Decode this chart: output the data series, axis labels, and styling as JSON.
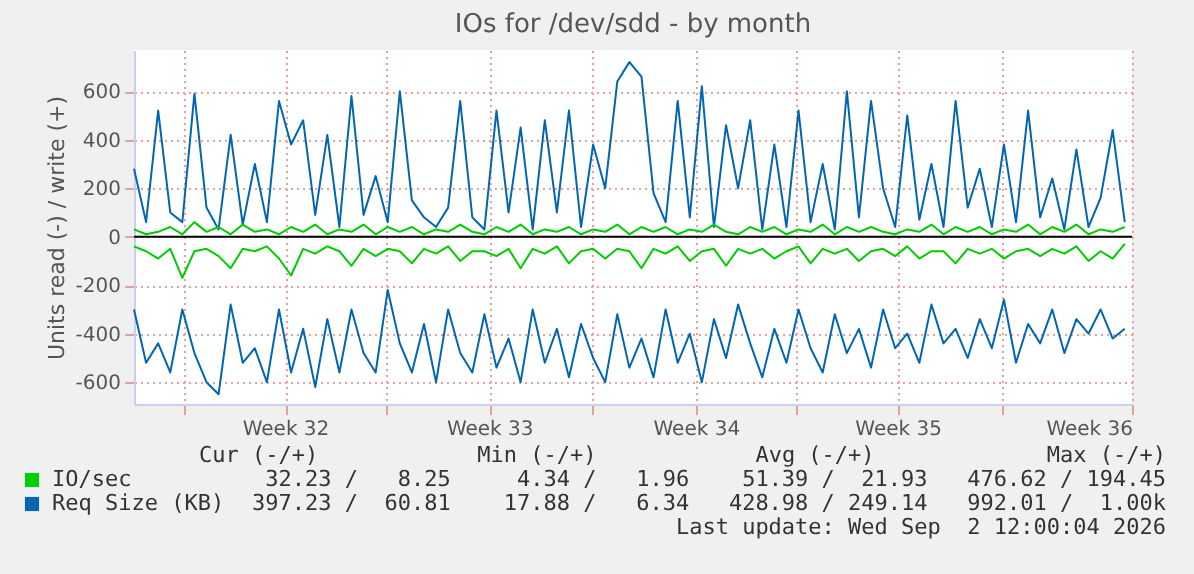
{
  "chart_data": {
    "type": "line",
    "title": "IOs for /dev/sdd - by month",
    "ylabel": "Units read (-) / write (+)",
    "x": [
      "2026-07-30T02:00",
      "2026-07-30T12:00",
      "2026-07-30T22:00",
      "2026-07-31T08:00",
      "2026-07-31T18:00",
      "2026-08-01T04:00",
      "2026-08-01T14:00",
      "2026-08-02T00:00",
      "2026-08-02T10:00",
      "2026-08-02T20:00",
      "2026-08-03T06:00",
      "2026-08-03T16:00",
      "2026-08-04T02:00",
      "2026-08-04T12:00",
      "2026-08-04T22:00",
      "2026-08-05T08:00",
      "2026-08-05T18:00",
      "2026-08-06T04:00",
      "2026-08-06T14:00",
      "2026-08-07T00:00",
      "2026-08-07T10:00",
      "2026-08-07T20:00",
      "2026-08-08T06:00",
      "2026-08-08T16:00",
      "2026-08-09T02:00",
      "2026-08-09T12:00",
      "2026-08-09T22:00",
      "2026-08-10T08:00",
      "2026-08-10T18:00",
      "2026-08-11T04:00",
      "2026-08-11T14:00",
      "2026-08-12T00:00",
      "2026-08-12T10:00",
      "2026-08-12T20:00",
      "2026-08-13T06:00",
      "2026-08-13T16:00",
      "2026-08-14T02:00",
      "2026-08-14T12:00",
      "2026-08-14T22:00",
      "2026-08-15T08:00",
      "2026-08-15T18:00",
      "2026-08-16T04:00",
      "2026-08-16T14:00",
      "2026-08-17T00:00",
      "2026-08-17T10:00",
      "2026-08-17T20:00",
      "2026-08-18T06:00",
      "2026-08-18T16:00",
      "2026-08-19T02:00",
      "2026-08-19T12:00",
      "2026-08-19T22:00",
      "2026-08-20T08:00",
      "2026-08-20T18:00",
      "2026-08-21T04:00",
      "2026-08-21T14:00",
      "2026-08-22T00:00",
      "2026-08-22T10:00",
      "2026-08-22T20:00",
      "2026-08-23T06:00",
      "2026-08-23T16:00",
      "2026-08-24T02:00",
      "2026-08-24T12:00",
      "2026-08-24T22:00",
      "2026-08-25T08:00",
      "2026-08-25T18:00",
      "2026-08-26T04:00",
      "2026-08-26T14:00",
      "2026-08-27T00:00",
      "2026-08-27T10:00",
      "2026-08-27T20:00",
      "2026-08-28T06:00",
      "2026-08-28T16:00",
      "2026-08-29T02:00",
      "2026-08-29T12:00",
      "2026-08-29T22:00",
      "2026-08-30T08:00",
      "2026-08-30T18:00",
      "2026-08-31T04:00",
      "2026-08-31T14:00",
      "2026-09-01T00:00",
      "2026-09-01T10:00",
      "2026-09-01T20:00",
      "2026-09-02T06:00"
    ],
    "series": [
      {
        "color": "#0066b3",
        "values": [
          -300,
          -520,
          -440,
          -560,
          -300,
          -480,
          -600,
          -650,
          -280,
          -520,
          -460,
          -600,
          -300,
          -560,
          -380,
          -620,
          -340,
          -560,
          -300,
          -480,
          -560,
          -220,
          -440,
          -560,
          -360,
          -600,
          -300,
          -480,
          -560,
          -320,
          -540,
          -420,
          -600,
          -300,
          -520,
          -380,
          -580,
          -360,
          -500,
          -600,
          -320,
          -540,
          -420,
          -580,
          -300,
          -520,
          -400,
          -600,
          -340,
          -500,
          -280,
          -440,
          -580,
          -380,
          -520,
          -300,
          -460,
          -560,
          -320,
          -480,
          -380,
          -540,
          -300,
          -460,
          -400,
          -520,
          -280,
          -440,
          -380,
          -500,
          -340,
          -460,
          -260,
          -520,
          -360,
          -440,
          -300,
          -480,
          -340,
          -400,
          -300,
          -420,
          -380
        ]
      },
      {
        "name": "Req Size (KB)",
        "color": "#0066b3",
        "values": [
          280,
          60,
          520,
          100,
          60,
          590,
          120,
          30,
          420,
          50,
          300,
          60,
          560,
          380,
          480,
          90,
          420,
          40,
          580,
          90,
          250,
          60,
          600,
          150,
          80,
          40,
          120,
          560,
          80,
          30,
          520,
          100,
          450,
          30,
          480,
          100,
          520,
          40,
          380,
          200,
          640,
          720,
          660,
          180,
          60,
          560,
          80,
          620,
          40,
          460,
          200,
          480,
          30,
          380,
          40,
          520,
          60,
          300,
          30,
          600,
          80,
          560,
          200,
          40,
          500,
          70,
          300,
          40,
          560,
          120,
          280,
          40,
          380,
          60,
          520,
          80,
          240,
          30,
          360,
          40,
          160,
          440,
          60
        ]
      },
      {
        "color": "#00cc00",
        "values": [
          -40,
          -60,
          -90,
          -50,
          -170,
          -60,
          -50,
          -80,
          -130,
          -50,
          -60,
          -40,
          -90,
          -160,
          -50,
          -70,
          -40,
          -60,
          -120,
          -50,
          -80,
          -50,
          -60,
          -110,
          -50,
          -70,
          -40,
          -100,
          -60,
          -60,
          -80,
          -50,
          -130,
          -50,
          -70,
          -40,
          -110,
          -60,
          -50,
          -90,
          -50,
          -60,
          -130,
          -50,
          -70,
          -40,
          -100,
          -60,
          -50,
          -120,
          -50,
          -70,
          -50,
          -90,
          -60,
          -40,
          -110,
          -50,
          -70,
          -50,
          -100,
          -60,
          -50,
          -80,
          -40,
          -90,
          -60,
          -60,
          -110,
          -50,
          -70,
          -50,
          -90,
          -60,
          -50,
          -80,
          -50,
          -70,
          -40,
          -100,
          -60,
          -90,
          -30
        ]
      },
      {
        "name": "IO/sec",
        "color": "#00cc00",
        "values": [
          30,
          10,
          20,
          40,
          10,
          60,
          20,
          40,
          10,
          50,
          20,
          30,
          10,
          40,
          20,
          50,
          10,
          30,
          20,
          50,
          10,
          40,
          20,
          40,
          10,
          30,
          20,
          50,
          20,
          10,
          40,
          20,
          50,
          10,
          30,
          20,
          40,
          10,
          30,
          20,
          50,
          10,
          40,
          20,
          40,
          10,
          30,
          20,
          50,
          20,
          10,
          40,
          20,
          40,
          10,
          30,
          20,
          50,
          10,
          40,
          20,
          40,
          20,
          10,
          30,
          20,
          50,
          10,
          40,
          20,
          40,
          10,
          30,
          20,
          50,
          10,
          40,
          20,
          50,
          10,
          30,
          20,
          40
        ]
      }
    ],
    "xlim": [
      "2026-07-30T02:00",
      "2026-09-02T12:00"
    ],
    "xticks": [
      {
        "value": "2026-07-31T20:00",
        "label": null
      },
      {
        "value": "2026-08-04T07:00",
        "label": "Week 32"
      },
      {
        "value": "2026-08-07T19:00",
        "label": null
      },
      {
        "value": "2026-08-11T08:00",
        "label": "Week 33"
      },
      {
        "value": "2026-08-14T21:00",
        "label": null
      },
      {
        "value": "2026-08-18T11:00",
        "label": "Week 34"
      },
      {
        "value": "2026-08-21T22:00",
        "label": null
      },
      {
        "value": "2026-08-25T10:00",
        "label": "Week 35"
      },
      {
        "value": "2026-08-29T00:00",
        "label": null
      },
      {
        "value": "2026-09-02T12:00",
        "label": "Week 36"
      }
    ],
    "ylim": [
      -690,
      770
    ],
    "yticks": [
      -600,
      -400,
      -200,
      0,
      200,
      400,
      600
    ],
    "ref_lines": [
      {
        "axis": "y",
        "value": 0,
        "label": null,
        "color": "#000000"
      }
    ],
    "grid": true,
    "legend": "bottom left",
    "line_style": "solid",
    "marker": "none",
    "annotations": [
      "Cur (-/+)            Min (-/+)            Avg (-/+)             Max (-/+)",
      " 32.23 /   8.25     4.34 /   1.96    51.39 /  21.93   476.62 / 194.45",
      "397.23 /  60.81    17.88 /   6.34   428.98 / 249.14   992.01 /  1.00k",
      "Last update: Wed Sep  2 12:00:04 2026"
    ]
  }
}
